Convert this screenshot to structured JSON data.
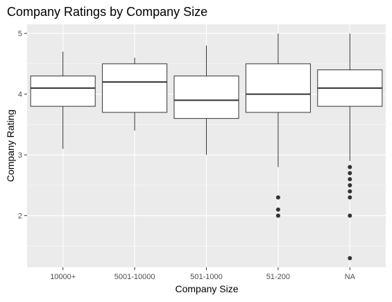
{
  "chart_data": {
    "type": "boxplot",
    "title": "Company Ratings by Company Size",
    "xlabel": "Company Size",
    "ylabel": "Company Rating",
    "ylim": [
      1.15,
      5.15
    ],
    "y_ticks": [
      2,
      3,
      4,
      5
    ],
    "grid": true,
    "categories": [
      "10000+",
      "5001-10000",
      "501-1000",
      "51-200",
      "NA"
    ],
    "boxes": [
      {
        "category": "10000+",
        "whisker_low": 3.1,
        "q1": 3.8,
        "median": 4.1,
        "q3": 4.3,
        "whisker_high": 4.7,
        "outliers": []
      },
      {
        "category": "5001-10000",
        "whisker_low": 3.4,
        "q1": 3.7,
        "median": 4.2,
        "q3": 4.5,
        "whisker_high": 4.6,
        "outliers": []
      },
      {
        "category": "501-1000",
        "whisker_low": 3.0,
        "q1": 3.6,
        "median": 3.9,
        "q3": 4.3,
        "whisker_high": 4.8,
        "outliers": []
      },
      {
        "category": "51-200",
        "whisker_low": 2.8,
        "q1": 3.7,
        "median": 4.0,
        "q3": 4.5,
        "whisker_high": 5.0,
        "outliers": [
          2.3,
          2.1,
          2.0
        ]
      },
      {
        "category": "NA",
        "whisker_low": 2.9,
        "q1": 3.8,
        "median": 4.1,
        "q3": 4.4,
        "whisker_high": 5.0,
        "outliers": [
          2.8,
          2.7,
          2.6,
          2.5,
          2.4,
          2.3,
          2.0,
          1.3
        ]
      }
    ],
    "colors": {
      "panel_background": "#ebebeb",
      "grid_major": "#ffffff",
      "box_fill": "#ffffff",
      "box_stroke": "#333333",
      "outlier": "#333333",
      "text": "#000000",
      "tick_text": "#4d4d4d"
    }
  }
}
